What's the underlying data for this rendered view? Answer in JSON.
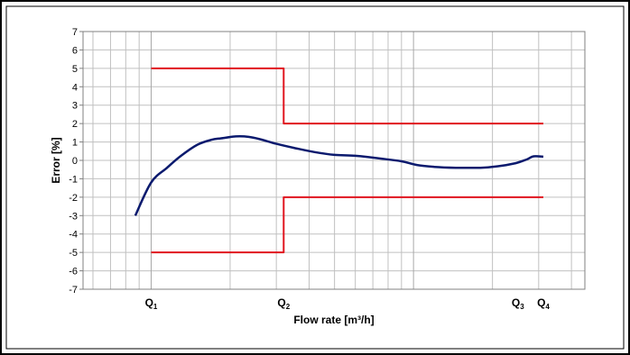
{
  "colors": {
    "frame": "#000000",
    "grid": "#c0c0c0",
    "limit_line": "#e0141e",
    "error_curve": "#0b1a6e"
  },
  "chart_data": {
    "type": "line",
    "title": "",
    "xlabel": "Flow rate [m³/h]",
    "ylabel": "Error [%]",
    "x_scale": "log",
    "xlim": [
      0.55,
      45
    ],
    "ylim": [
      -7,
      7
    ],
    "y_ticks": [
      "7",
      "6",
      "5",
      "4",
      "3",
      "2",
      "1",
      "0",
      "-1",
      "-2",
      "-3",
      "-4",
      "-5",
      "-6",
      "-7"
    ],
    "grid": true,
    "legend": "none",
    "x_markers": [
      {
        "main": "Q",
        "sub": "1",
        "x": 1
      },
      {
        "main": "Q",
        "sub": "2",
        "x": 3.2
      },
      {
        "main": "Q",
        "sub": "3",
        "x": 25
      },
      {
        "main": "Q",
        "sub": "4",
        "x": 31.25
      }
    ],
    "series": [
      {
        "role": "upper-limit",
        "x": [
          1,
          3.2,
          3.2,
          31.25
        ],
        "y": [
          5,
          5,
          2,
          2
        ]
      },
      {
        "role": "lower-limit",
        "x": [
          1,
          3.2,
          3.2,
          31.25
        ],
        "y": [
          -5,
          -5,
          -2,
          -2
        ]
      },
      {
        "role": "error-curve",
        "x": [
          0.87,
          1.0,
          1.15,
          1.3,
          1.5,
          1.7,
          1.85,
          2.1,
          2.35,
          2.6,
          3.0,
          3.5,
          4.2,
          5.0,
          6.0,
          7.5,
          9.0,
          10.3,
          12.0,
          14.5,
          18.0,
          21.0,
          24.5,
          27.0,
          28.7,
          31.25
        ],
        "y": [
          -3.0,
          -1.2,
          -0.4,
          0.25,
          0.85,
          1.12,
          1.2,
          1.3,
          1.28,
          1.15,
          0.9,
          0.68,
          0.45,
          0.3,
          0.25,
          0.1,
          -0.05,
          -0.25,
          -0.35,
          -0.4,
          -0.4,
          -0.32,
          -0.15,
          0.05,
          0.22,
          0.2
        ]
      }
    ]
  }
}
